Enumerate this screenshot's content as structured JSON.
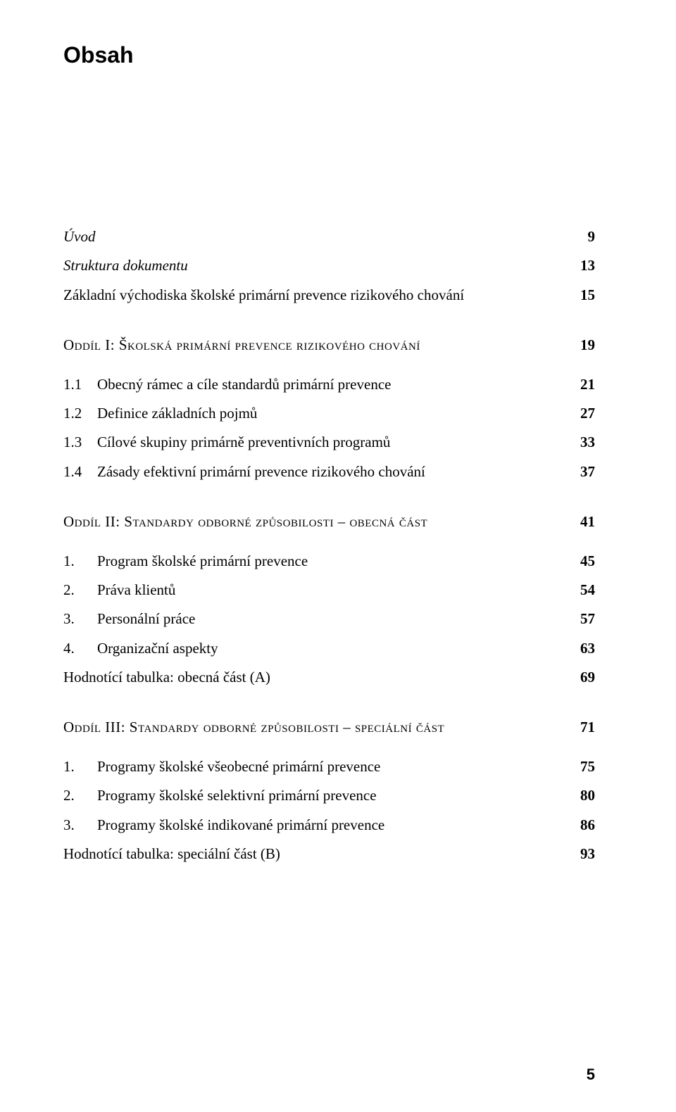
{
  "title": "Obsah",
  "page_number": "5",
  "style": {
    "background_color": "#ffffff",
    "text_color": "#000000",
    "title_fontsize": 32,
    "body_fontsize": 21,
    "title_font_family": "Arial",
    "body_font_family": "Georgia"
  },
  "entries": [
    {
      "type": "italic",
      "label": "Úvod",
      "page": "9"
    },
    {
      "type": "italic",
      "label": "Struktura dokumentu",
      "page": "13"
    },
    {
      "type": "plain",
      "label": "Základní východiska školské primární prevence rizikového chování",
      "page": "15"
    },
    {
      "type": "gap-medium"
    },
    {
      "type": "section",
      "label": "Oddíl I: Školská primární prevence rizikového chování",
      "page": "19"
    },
    {
      "type": "gap-small"
    },
    {
      "type": "numbered",
      "num": "1.1",
      "label": "Obecný rámec a cíle standardů primární prevence",
      "page": "21"
    },
    {
      "type": "numbered",
      "num": "1.2",
      "label": "Definice základních pojmů",
      "page": "27"
    },
    {
      "type": "numbered",
      "num": "1.3",
      "label": "Cílové skupiny primárně preventivních programů",
      "page": "33"
    },
    {
      "type": "numbered",
      "num": "1.4",
      "label": "Zásady efektivní primární prevence rizikového chování",
      "page": "37"
    },
    {
      "type": "gap-medium"
    },
    {
      "type": "section",
      "label": "Oddíl II: Standardy odborné způsobilosti – obecná část",
      "page": "41"
    },
    {
      "type": "gap-small"
    },
    {
      "type": "numbered",
      "num": "1.",
      "label": "Program školské primární prevence",
      "page": "45"
    },
    {
      "type": "numbered",
      "num": "2.",
      "label": "Práva klientů",
      "page": "54"
    },
    {
      "type": "numbered",
      "num": "3.",
      "label": "Personální práce",
      "page": "57"
    },
    {
      "type": "numbered",
      "num": "4.",
      "label": "Organizační aspekty",
      "page": "63"
    },
    {
      "type": "plain",
      "label": "Hodnotící tabulka: obecná část (A)",
      "page": "69"
    },
    {
      "type": "gap-medium"
    },
    {
      "type": "section",
      "label": "Oddíl III: Standardy odborné způsobilosti – speciální část",
      "page": "71"
    },
    {
      "type": "gap-small"
    },
    {
      "type": "numbered",
      "num": "1.",
      "label": "Programy školské všeobecné primární prevence",
      "page": "75"
    },
    {
      "type": "numbered",
      "num": "2.",
      "label": "Programy školské selektivní primární prevence",
      "page": "80"
    },
    {
      "type": "numbered",
      "num": "3.",
      "label": "Programy školské indikované primární prevence",
      "page": "86"
    },
    {
      "type": "plain",
      "label": "Hodnotící tabulka: speciální část (B)",
      "page": "93"
    }
  ]
}
